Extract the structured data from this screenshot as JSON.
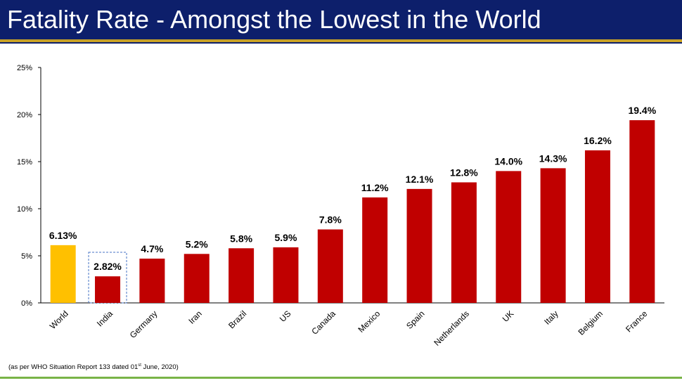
{
  "header": {
    "title": "Fatality Rate - Amongst the Lowest in the World"
  },
  "colors": {
    "header_bg": "#0d1f6b",
    "gold_rule": "#c9a227",
    "bar_default": "#c00000",
    "bar_world": "#ffc000",
    "highlight_box": "#4472c4",
    "footer_rule": "#79b447"
  },
  "chart_data": {
    "type": "bar",
    "title": "",
    "xlabel": "",
    "ylabel": "",
    "ylim": [
      0,
      25
    ],
    "yticks": [
      0,
      5,
      10,
      15,
      20,
      25
    ],
    "ytick_labels": [
      "0%",
      "5%",
      "10%",
      "15%",
      "20%",
      "25%"
    ],
    "grid": false,
    "categories": [
      "World",
      "India",
      "Germany",
      "Iran",
      "Brazil",
      "US",
      "Canada",
      "Mexico",
      "Spain",
      "Netherlands",
      "UK",
      "Italy",
      "Belgium",
      "France"
    ],
    "values": [
      6.13,
      2.82,
      4.7,
      5.2,
      5.8,
      5.9,
      7.8,
      11.2,
      12.1,
      12.8,
      14.0,
      14.3,
      16.2,
      19.4
    ],
    "data_labels": [
      "6.13%",
      "2.82%",
      "4.7%",
      "5.2%",
      "5.8%",
      "5.9%",
      "7.8%",
      "11.2%",
      "12.1%",
      "12.8%",
      "14.0%",
      "14.3%",
      "16.2%",
      "19.4%"
    ],
    "bar_colors": [
      "#ffc000",
      "#c00000",
      "#c00000",
      "#c00000",
      "#c00000",
      "#c00000",
      "#c00000",
      "#c00000",
      "#c00000",
      "#c00000",
      "#c00000",
      "#c00000",
      "#c00000",
      "#c00000"
    ],
    "highlighted_category": "India"
  },
  "footnote": {
    "prefix": "(as per WHO Situation Report 133 dated 01",
    "superscript": "st",
    "suffix": " June, 2020)"
  }
}
